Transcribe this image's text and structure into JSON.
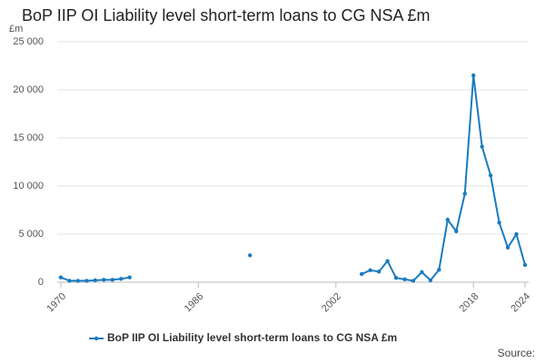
{
  "chart_data": {
    "type": "line",
    "title": "BoP IIP OI Liability level short-term loans to CG NSA £m",
    "y_unit": "£m",
    "source": "Source:",
    "x": [
      1970,
      1971,
      1972,
      1973,
      1974,
      1975,
      1976,
      1977,
      1978,
      1979,
      1980,
      1981,
      1982,
      1983,
      1984,
      1985,
      1986,
      1987,
      1988,
      1989,
      1990,
      1991,
      1992,
      1993,
      1994,
      1995,
      1996,
      1997,
      1998,
      1999,
      2000,
      2001,
      2002,
      2003,
      2004,
      2005,
      2006,
      2007,
      2008,
      2009,
      2010,
      2011,
      2012,
      2013,
      2014,
      2015,
      2016,
      2017,
      2018,
      2019,
      2020,
      2021,
      2022,
      2023,
      2024
    ],
    "series": [
      {
        "name": "BoP IIP OI Liability level short-term loans to CG NSA £m",
        "color": "#1a7bbf",
        "values": [
          500,
          150,
          150,
          150,
          200,
          250,
          250,
          350,
          500,
          null,
          null,
          null,
          null,
          null,
          null,
          null,
          null,
          null,
          null,
          null,
          null,
          null,
          2800,
          null,
          null,
          null,
          null,
          null,
          null,
          null,
          null,
          null,
          null,
          null,
          null,
          850,
          1250,
          1100,
          2200,
          450,
          300,
          150,
          1050,
          200,
          1300,
          6500,
          5300,
          9200,
          21500,
          14100,
          11100,
          6200,
          3600,
          5000,
          1800
        ]
      }
    ],
    "xlim": [
      1970,
      2024
    ],
    "xticks": [
      1970,
      1986,
      2002,
      2018,
      2024
    ],
    "ylim": [
      0,
      25000
    ],
    "yticks": [
      0,
      {
        "value": 5000,
        "label": "5 000"
      },
      {
        "value": 10000,
        "label": "10 000"
      },
      {
        "value": 15000,
        "label": "15 000"
      },
      {
        "value": 20000,
        "label": "20 000"
      },
      {
        "value": 25000,
        "label": "25 000"
      }
    ],
    "grid": true
  }
}
